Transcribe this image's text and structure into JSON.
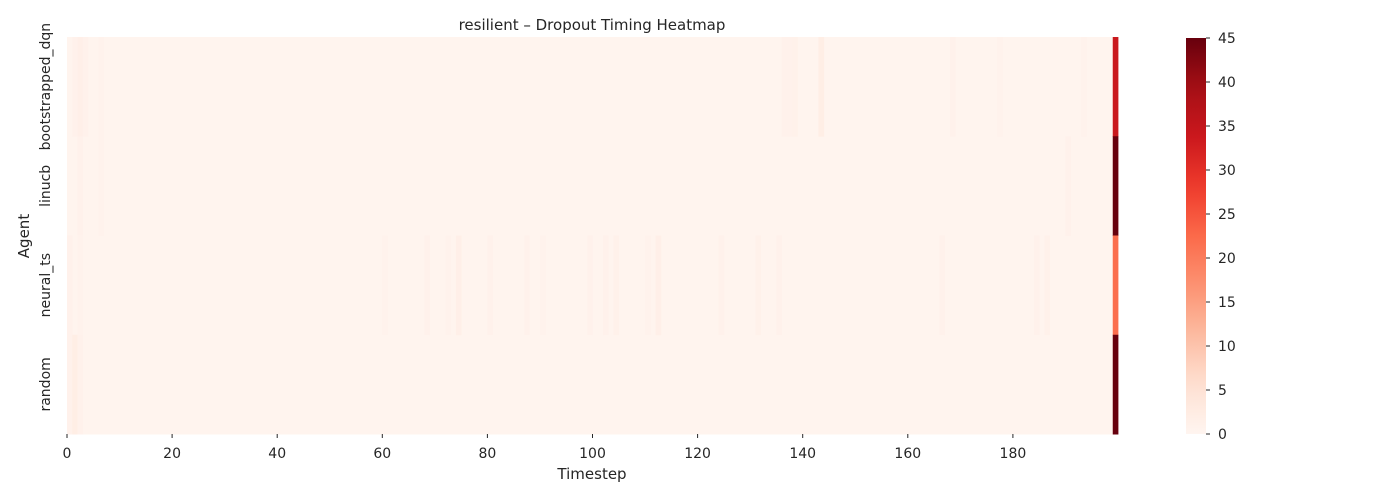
{
  "chart_data": {
    "type": "heatmap",
    "title": "resilient – Dropout Timing Heatmap",
    "xlabel": "Timestep",
    "ylabel": "Agent",
    "rows": [
      "bootstrapped_dqn",
      "linucb",
      "neural_ts",
      "random"
    ],
    "x_range": [
      0,
      199
    ],
    "x_ticks": [
      0,
      20,
      40,
      60,
      80,
      100,
      120,
      140,
      160,
      180
    ],
    "colormap": "Reds",
    "colorbar": {
      "range": [
        0,
        45
      ],
      "ticks": [
        0,
        5,
        10,
        15,
        20,
        25,
        30,
        35,
        40,
        45
      ]
    },
    "baseline_value": 0.4,
    "cells": [
      {
        "row": "bootstrapped_dqn",
        "x": 1,
        "value": 1
      },
      {
        "row": "bootstrapped_dqn",
        "x": 2,
        "value": 1.5
      },
      {
        "row": "bootstrapped_dqn",
        "x": 3,
        "value": 1
      },
      {
        "row": "bootstrapped_dqn",
        "x": 6,
        "value": 0.8
      },
      {
        "row": "bootstrapped_dqn",
        "x": 136,
        "value": 1
      },
      {
        "row": "bootstrapped_dqn",
        "x": 137,
        "value": 1
      },
      {
        "row": "bootstrapped_dqn",
        "x": 138,
        "value": 1.2
      },
      {
        "row": "bootstrapped_dqn",
        "x": 143,
        "value": 2
      },
      {
        "row": "bootstrapped_dqn",
        "x": 168,
        "value": 1
      },
      {
        "row": "bootstrapped_dqn",
        "x": 177,
        "value": 0.8
      },
      {
        "row": "bootstrapped_dqn",
        "x": 193,
        "value": 0.8
      },
      {
        "row": "bootstrapped_dqn",
        "x": 199,
        "value": 34
      },
      {
        "row": "linucb",
        "x": 2,
        "value": 1
      },
      {
        "row": "linucb",
        "x": 6,
        "value": 0.8
      },
      {
        "row": "linucb",
        "x": 190,
        "value": 1
      },
      {
        "row": "linucb",
        "x": 199,
        "value": 45
      },
      {
        "row": "neural_ts",
        "x": 0,
        "value": 1
      },
      {
        "row": "neural_ts",
        "x": 2,
        "value": 0.8
      },
      {
        "row": "neural_ts",
        "x": 60,
        "value": 0.8
      },
      {
        "row": "neural_ts",
        "x": 68,
        "value": 1
      },
      {
        "row": "neural_ts",
        "x": 72,
        "value": 0.8
      },
      {
        "row": "neural_ts",
        "x": 74,
        "value": 1.5
      },
      {
        "row": "neural_ts",
        "x": 80,
        "value": 1
      },
      {
        "row": "neural_ts",
        "x": 87,
        "value": 1
      },
      {
        "row": "neural_ts",
        "x": 90,
        "value": 0.8
      },
      {
        "row": "neural_ts",
        "x": 99,
        "value": 1
      },
      {
        "row": "neural_ts",
        "x": 102,
        "value": 1
      },
      {
        "row": "neural_ts",
        "x": 104,
        "value": 1.2
      },
      {
        "row": "neural_ts",
        "x": 110,
        "value": 0.8
      },
      {
        "row": "neural_ts",
        "x": 112,
        "value": 1.5
      },
      {
        "row": "neural_ts",
        "x": 124,
        "value": 1
      },
      {
        "row": "neural_ts",
        "x": 131,
        "value": 1.2
      },
      {
        "row": "neural_ts",
        "x": 135,
        "value": 1
      },
      {
        "row": "neural_ts",
        "x": 166,
        "value": 1
      },
      {
        "row": "neural_ts",
        "x": 184,
        "value": 1
      },
      {
        "row": "neural_ts",
        "x": 186,
        "value": 1.2
      },
      {
        "row": "neural_ts",
        "x": 199,
        "value": 22
      },
      {
        "row": "random",
        "x": 0,
        "value": 1
      },
      {
        "row": "random",
        "x": 1,
        "value": 2
      },
      {
        "row": "random",
        "x": 2,
        "value": 1
      },
      {
        "row": "random",
        "x": 199,
        "value": 45
      }
    ]
  }
}
